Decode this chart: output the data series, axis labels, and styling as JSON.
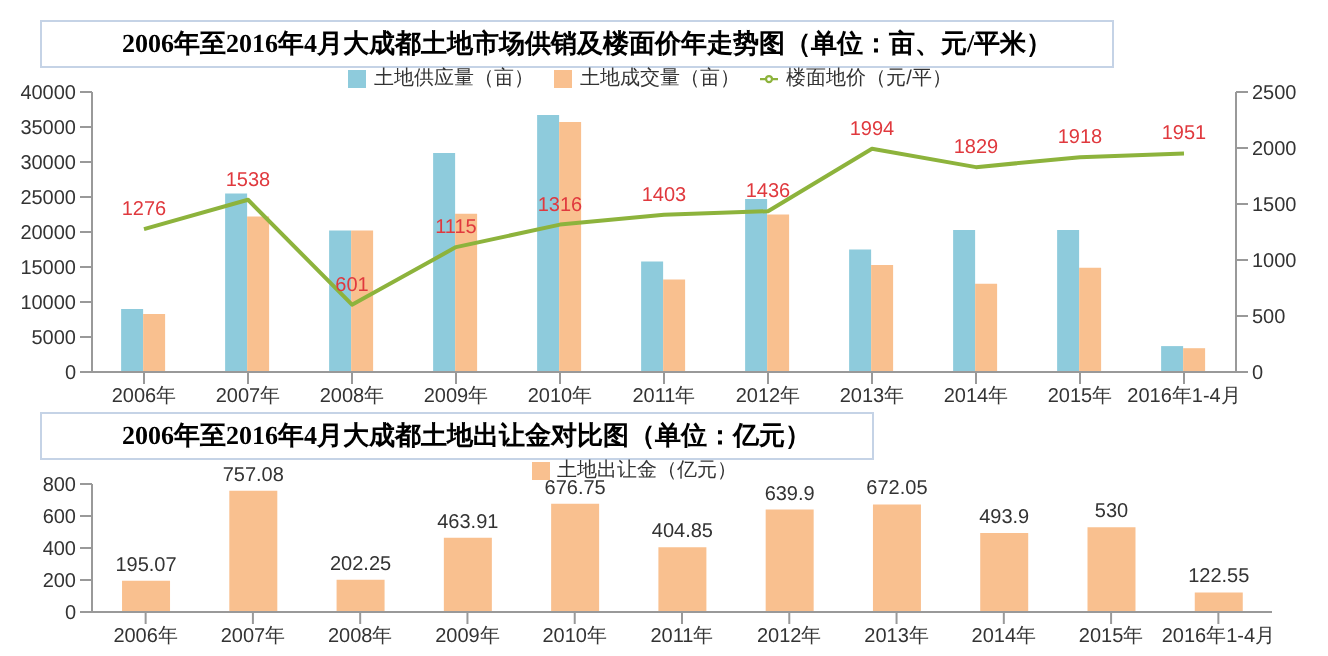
{
  "chart_data": [
    {
      "type": "bar",
      "title": "2006年至2016年4月大成都土地市场供销及楼面价年走势图（单位：亩、元/平米）",
      "categories": [
        "2006年",
        "2007年",
        "2008年",
        "2009年",
        "2010年",
        "2011年",
        "2012年",
        "2013年",
        "2014年",
        "2015年",
        "2016年1-4月"
      ],
      "series": [
        {
          "name": "土地供应量（亩）",
          "color": "#8ecbdc",
          "values": [
            9000,
            25500,
            20200,
            31300,
            36700,
            15800,
            24700,
            17500,
            20300,
            20300,
            3700
          ]
        },
        {
          "name": "土地成交量（亩）",
          "color": "#f9c08f",
          "values": [
            8300,
            22200,
            20200,
            22600,
            35700,
            13200,
            22500,
            15300,
            12600,
            14900,
            3400
          ]
        },
        {
          "name": "楼面地价（元/平）",
          "type": "line",
          "axis": "y2",
          "color": "#8db33c",
          "values": [
            1276,
            1538,
            601,
            1115,
            1316,
            1403,
            1436,
            1994,
            1829,
            1918,
            1951
          ],
          "value_labels": [
            "1276",
            "1538",
            "601",
            "1115",
            "1316",
            "1403",
            "1436",
            "1994",
            "1829",
            "1918",
            "1951"
          ]
        }
      ],
      "ylim": [
        0,
        40000
      ],
      "yticks": [
        0,
        5000,
        10000,
        15000,
        20000,
        25000,
        30000,
        35000,
        40000
      ],
      "y2lim": [
        0,
        2500
      ],
      "y2ticks": [
        0,
        500,
        1000,
        1500,
        2000,
        2500
      ],
      "legend": "top",
      "marker": "none"
    },
    {
      "type": "bar",
      "title": "2006年至2016年4月大成都土地出让金对比图（单位：亿元）",
      "categories": [
        "2006年",
        "2007年",
        "2008年",
        "2009年",
        "2010年",
        "2011年",
        "2012年",
        "2013年",
        "2014年",
        "2015年",
        "2016年1-4月"
      ],
      "series": [
        {
          "name": "土地出让金（亿元）",
          "color": "#f9c08f",
          "values": [
            195.07,
            757.08,
            202.25,
            463.91,
            676.75,
            404.85,
            639.9,
            672.05,
            493.9,
            530,
            122.55
          ]
        }
      ],
      "ylim": [
        0,
        800
      ],
      "yticks": [
        0,
        200,
        400,
        600,
        800
      ],
      "legend": "top",
      "data_labels": true
    }
  ]
}
